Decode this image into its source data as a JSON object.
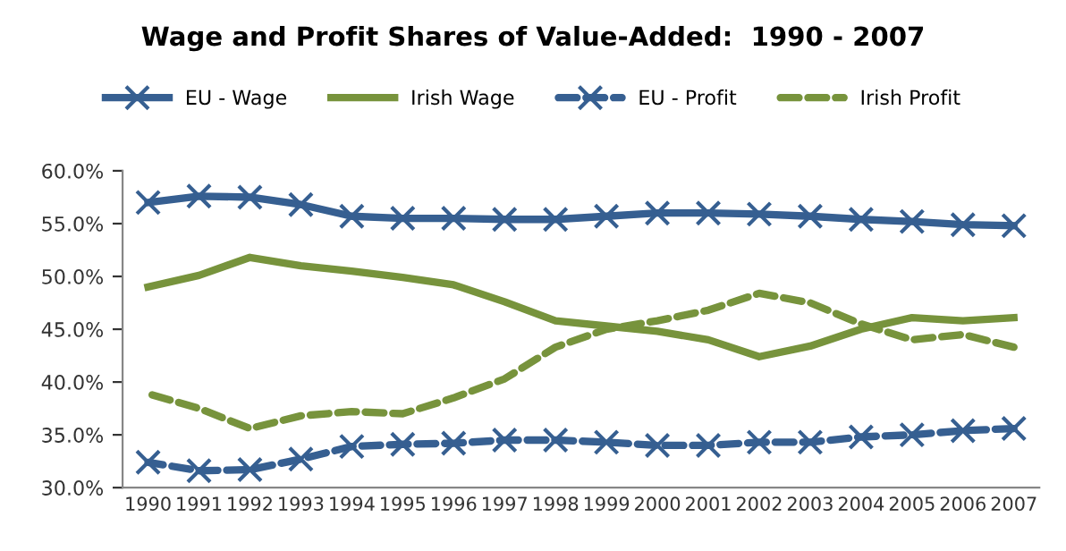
{
  "chart_data": {
    "type": "line",
    "title": "Wage and Profit Shares of Value-Added:  1990 - 2007",
    "categories": [
      "1990",
      "1991",
      "1992",
      "1993",
      "1994",
      "1995",
      "1996",
      "1997",
      "1998",
      "1999",
      "2000",
      "2001",
      "2002",
      "2003",
      "2004",
      "2005",
      "2006",
      "2007"
    ],
    "series": [
      {
        "name": "EU - Wage",
        "color": "#365f91",
        "marker": "cross",
        "line_style": "solid",
        "values": [
          57.0,
          57.6,
          57.5,
          56.8,
          55.7,
          55.5,
          55.5,
          55.4,
          55.4,
          55.7,
          56.0,
          56.0,
          55.9,
          55.7,
          55.4,
          55.2,
          54.9,
          54.8
        ]
      },
      {
        "name": "Irish Wage",
        "color": "#77933c",
        "marker": "none",
        "line_style": "solid",
        "values": [
          49.0,
          50.1,
          51.8,
          51.0,
          50.5,
          49.9,
          49.2,
          47.6,
          45.8,
          45.3,
          44.8,
          44.0,
          42.4,
          43.4,
          45.0,
          46.1,
          45.8,
          46.1
        ]
      },
      {
        "name": "EU - Profit",
        "color": "#365f91",
        "marker": "cross",
        "line_style": "dashed",
        "values": [
          32.4,
          31.6,
          31.7,
          32.7,
          33.9,
          34.1,
          34.2,
          34.5,
          34.5,
          34.3,
          34.0,
          34.0,
          34.3,
          34.3,
          34.8,
          35.0,
          35.4,
          35.6
        ]
      },
      {
        "name": "Irish Profit",
        "color": "#77933c",
        "marker": "none",
        "line_style": "dashed",
        "values": [
          38.9,
          37.5,
          35.6,
          36.8,
          37.2,
          37.0,
          38.5,
          40.3,
          43.3,
          45.0,
          45.8,
          46.8,
          48.4,
          47.5,
          45.5,
          44.0,
          44.5,
          43.3
        ]
      }
    ],
    "ylim": [
      30,
      60
    ],
    "yticks": [
      {
        "value": 30,
        "label": "30.0%"
      },
      {
        "value": 35,
        "label": "35.0%"
      },
      {
        "value": 40,
        "label": "40.0%"
      },
      {
        "value": 45,
        "label": "45.0%"
      },
      {
        "value": 50,
        "label": "50.0%"
      },
      {
        "value": 55,
        "label": "55.0%"
      },
      {
        "value": 60,
        "label": "60.0%"
      }
    ],
    "grid": false,
    "legend": "top"
  }
}
